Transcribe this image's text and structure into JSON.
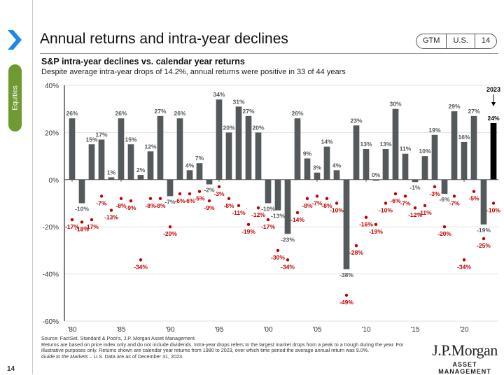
{
  "sidebar": {
    "section_label": "Equities",
    "page_number": "14"
  },
  "header": {
    "title": "Annual returns and intra-year declines",
    "badge": [
      "GTM",
      "U.S.",
      "14"
    ]
  },
  "colors": {
    "bar": "#54595c",
    "bar_highlight": "#000000",
    "decline_dot": "#c00000",
    "section_green": "#6f9a31",
    "chevron_blue": "#1e88e5"
  },
  "chart_data": {
    "type": "bar",
    "title": "S&P intra-year declines vs. calendar year returns",
    "subtitle": "Despite average intra-year drops of 14.2%, annual returns were positive in 33 of 44 years",
    "xlabel": "",
    "ylabel": "",
    "ylim": [
      -60,
      40
    ],
    "yticks": [
      40,
      20,
      0,
      -20,
      -40,
      -60
    ],
    "ytick_labels": [
      "40%",
      "20%",
      "0%",
      "-20%",
      "-40%",
      "-60%"
    ],
    "xtick_labels": [
      "'80",
      "'85",
      "'90",
      "'95",
      "'00",
      "'05",
      "'10",
      "'15",
      "'20"
    ],
    "grid": true,
    "years": [
      1980,
      1981,
      1982,
      1983,
      1984,
      1985,
      1986,
      1987,
      1988,
      1989,
      1990,
      1991,
      1992,
      1993,
      1994,
      1995,
      1996,
      1997,
      1998,
      1999,
      2000,
      2001,
      2002,
      2003,
      2004,
      2005,
      2006,
      2007,
      2008,
      2009,
      2010,
      2011,
      2012,
      2013,
      2014,
      2015,
      2016,
      2017,
      2018,
      2019,
      2020,
      2021,
      2022,
      2023
    ],
    "series": [
      {
        "name": "Calendar year return",
        "type": "bar",
        "values": [
          26,
          -10,
          15,
          17,
          1,
          26,
          15,
          2,
          12,
          27,
          -7,
          26,
          4,
          7,
          -2,
          34,
          20,
          31,
          27,
          20,
          -10,
          -13,
          -23,
          26,
          9,
          3,
          14,
          4,
          -38,
          23,
          13,
          0,
          13,
          30,
          11,
          -1,
          10,
          19,
          -6,
          29,
          16,
          27,
          -19,
          24
        ]
      },
      {
        "name": "Intra-year decline",
        "type": "scatter",
        "values": [
          -17,
          -18,
          -17,
          -7,
          -13,
          -8,
          -9,
          -34,
          -8,
          -8,
          -20,
          -6,
          -6,
          -5,
          -9,
          -3,
          -8,
          -11,
          -19,
          -12,
          -17,
          -30,
          -34,
          -14,
          -8,
          -7,
          -8,
          -10,
          -49,
          -28,
          -16,
          -19,
          -10,
          -6,
          -7,
          -12,
          -11,
          -3,
          -20,
          -7,
          -34,
          -5,
          -25,
          -10
        ]
      }
    ],
    "annotations": [
      {
        "text": "2023",
        "target_year": 2023,
        "type": "arrow"
      }
    ]
  },
  "footer": {
    "source": "Source: FactSet, Standard & Poor's, J.P. Morgan Asset Management.",
    "note": "Returns are based on price index only and do not include dividends. Intra-year drops refers to the largest market drops from a peak to a trough during the year. For illustrative purposes only. Returns shown are calendar year returns from 1980 to 2023, over which time period the average annual return was 9.0%.",
    "guide_italic": "Guide to the Markets – U.S.",
    "guide_rest": " Data are as of December 31, 2023."
  },
  "logo": {
    "name": "J.P.Morgan",
    "sub": "ASSET MANAGEMENT"
  }
}
